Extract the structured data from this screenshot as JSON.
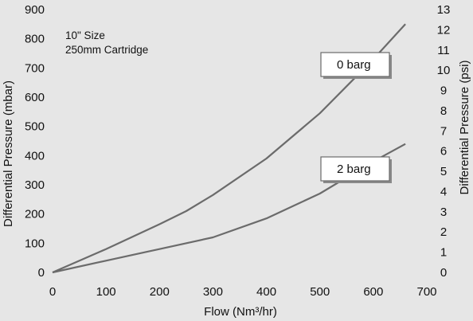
{
  "chart_data": {
    "type": "line",
    "title": "",
    "xlabel": "Flow (Nm³/hr)",
    "ylabel": "Differential Pressure (mbar)",
    "y2label": "Differential Pressure (psi)",
    "xlim": [
      0,
      700
    ],
    "ylim": [
      0,
      900
    ],
    "y2lim": [
      0,
      13
    ],
    "x_ticks": [
      0,
      100,
      200,
      300,
      400,
      500,
      600,
      700
    ],
    "y_ticks": [
      0,
      100,
      200,
      300,
      400,
      500,
      600,
      700,
      800,
      900
    ],
    "y2_ticks": [
      0,
      1,
      2,
      3,
      4,
      5,
      6,
      7,
      8,
      9,
      10,
      11,
      12,
      13
    ],
    "grid": false,
    "annotations": [
      "10\" Size",
      "250mm Cartridge"
    ],
    "series": [
      {
        "name": "0 barg",
        "x": [
          0,
          100,
          200,
          250,
          300,
          400,
          500,
          600,
          660
        ],
        "y": [
          0,
          80,
          165,
          210,
          265,
          390,
          545,
          730,
          850
        ]
      },
      {
        "name": "2 barg",
        "x": [
          0,
          100,
          175,
          200,
          300,
          400,
          500,
          600,
          660
        ],
        "y": [
          0,
          40,
          70,
          80,
          120,
          185,
          270,
          380,
          440
        ]
      }
    ],
    "colors": {
      "line": "#6b6b6b",
      "background": "#e6e6e6"
    }
  }
}
